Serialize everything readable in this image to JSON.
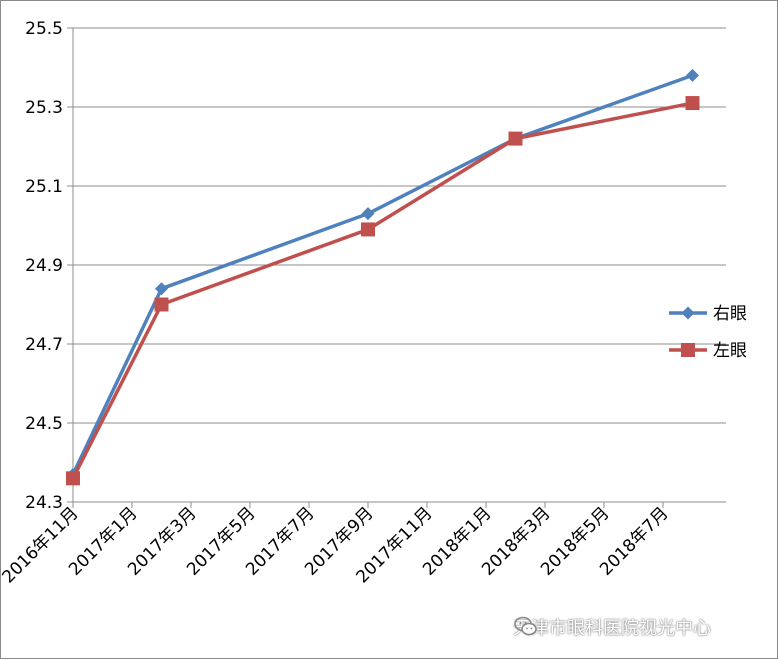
{
  "chart_data": {
    "type": "line",
    "title": "",
    "xlabel": "",
    "ylabel": "",
    "ylim": [
      24.3,
      25.5
    ],
    "yticks": [
      "24.3",
      "24.5",
      "24.7",
      "24.9",
      "25.1",
      "25.3",
      "25.5"
    ],
    "xtick_labels": [
      "2016年11月",
      "2017年1月",
      "2017年3月",
      "2017年5月",
      "2017年7月",
      "2017年9月",
      "2017年11月",
      "2018年1月",
      "2018年3月",
      "2018年5月",
      "2018年7月"
    ],
    "grid": true,
    "legend_position": "right",
    "series": [
      {
        "name": "右眼",
        "color": "#4f81bd",
        "marker": "diamond",
        "points": [
          {
            "x": "2016-11",
            "y": 24.37
          },
          {
            "x": "2017-02",
            "y": 24.84
          },
          {
            "x": "2017-09",
            "y": 25.03
          },
          {
            "x": "2018-02",
            "y": 25.22
          },
          {
            "x": "2018-08",
            "y": 25.38
          }
        ]
      },
      {
        "name": "左眼",
        "color": "#c0504d",
        "marker": "square",
        "points": [
          {
            "x": "2016-11",
            "y": 24.36
          },
          {
            "x": "2017-02",
            "y": 24.8
          },
          {
            "x": "2017-09",
            "y": 24.99
          },
          {
            "x": "2018-02",
            "y": 25.22
          },
          {
            "x": "2018-08",
            "y": 25.31
          }
        ]
      }
    ]
  },
  "watermark": {
    "text": "天津市眼科医院视光中心",
    "icon": "wechat-icon"
  }
}
